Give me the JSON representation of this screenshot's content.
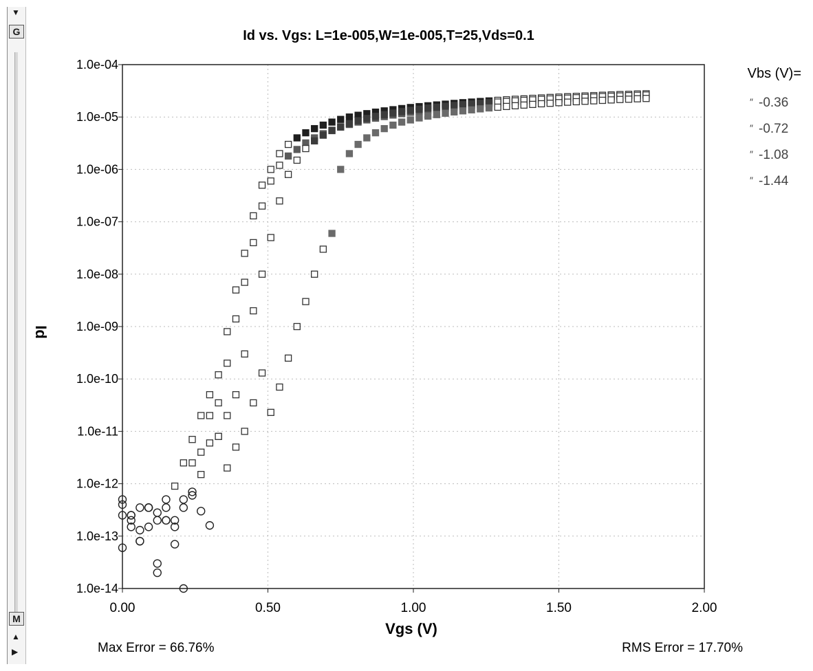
{
  "toolbar": {
    "top_button": "G",
    "bottom_button": "M",
    "top_arrow_icon": "triangle-down-icon",
    "up_arrow_icon": "triangle-up-icon",
    "right_arrow_icon": "triangle-right-icon"
  },
  "chart_data": {
    "type": "scatter",
    "title": "Id vs. Vgs: L=1e-005,W=1e-005,T=25,Vds=0.1",
    "xlabel": "Vgs (V)",
    "ylabel": "Id",
    "yscale": "log",
    "xlim": [
      0,
      2
    ],
    "ylim": [
      1e-14,
      0.0001
    ],
    "grid": true,
    "x_ticks": [
      0,
      0.5,
      1.0,
      1.5,
      2.0
    ],
    "x_tick_labels": [
      "0.00",
      "0.50",
      "1.00",
      "1.50",
      "2.00"
    ],
    "y_ticks": [
      0.0001,
      1e-05,
      1e-06,
      1e-07,
      1e-08,
      1e-09,
      1e-10,
      1e-11,
      1e-12,
      1e-13,
      1e-14
    ],
    "y_tick_labels": [
      "1.0e-04",
      "1.0e-05",
      "1.0e-06",
      "1.0e-07",
      "1.0e-08",
      "1.0e-09",
      "1.0e-10",
      "1.0e-11",
      "1.0e-12",
      "1.0e-13",
      "1.0e-14"
    ],
    "legend_title": "Vbs (V)=",
    "legend_position": "right",
    "series": [
      {
        "name": "-0.36",
        "color": "#5a5a5a",
        "marker_threshold_lin": 0.55,
        "x": [
          0.0,
          0.03,
          0.06,
          0.09,
          0.12,
          0.15,
          0.18,
          0.21,
          0.24,
          0.27,
          0.3,
          0.33,
          0.36,
          0.39,
          0.42,
          0.45,
          0.48,
          0.51,
          0.54,
          0.57,
          0.6,
          0.63,
          0.66,
          0.69,
          0.72,
          0.75,
          0.78,
          0.81,
          0.84,
          0.87,
          0.9,
          0.93,
          0.96,
          0.99,
          1.02,
          1.05,
          1.08,
          1.11,
          1.14,
          1.17,
          1.2,
          1.23,
          1.26,
          1.29,
          1.32,
          1.35,
          1.38,
          1.41,
          1.44,
          1.47,
          1.5,
          1.53,
          1.56,
          1.59,
          1.62,
          1.65,
          1.68,
          1.71,
          1.74,
          1.77,
          1.8
        ],
        "y": [
          5e-13,
          2.5e-13,
          1.3e-13,
          3.5e-13,
          2e-13,
          3.5e-13,
          1.5e-13,
          5e-13,
          6e-13,
          1.5e-12,
          6e-12,
          3.5e-11,
          2e-10,
          1.4e-09,
          7e-09,
          4e-08,
          2e-07,
          6e-07,
          1.2e-06,
          1.8e-06,
          2.4e-06,
          3.2e-06,
          4e-06,
          4.8e-06,
          5.6e-06,
          6.4e-06,
          7.2e-06,
          8e-06,
          8.8e-06,
          9.5e-06,
          1.02e-05,
          1.09e-05,
          1.16e-05,
          1.23e-05,
          1.3e-05,
          1.37e-05,
          1.43e-05,
          1.49e-05,
          1.55e-05,
          1.61e-05,
          1.67e-05,
          1.73e-05,
          1.79e-05,
          1.85e-05,
          1.9e-05,
          1.96e-05,
          2.01e-05,
          2.06e-05,
          2.11e-05,
          2.16e-05,
          2.21e-05,
          2.26e-05,
          2.3e-05,
          2.35e-05,
          2.4e-05,
          2.44e-05,
          2.48e-05,
          2.52e-05,
          2.56e-05,
          2.6e-05,
          2.64e-05
        ]
      },
      {
        "name": "-0.72",
        "color": "#1f1f1f",
        "marker_threshold_lin": 0.6,
        "x": [
          0.0,
          0.03,
          0.06,
          0.09,
          0.12,
          0.15,
          0.18,
          0.21,
          0.24,
          0.27,
          0.3,
          0.33,
          0.36,
          0.39,
          0.42,
          0.45,
          0.48,
          0.51,
          0.54,
          0.57,
          0.6,
          0.63,
          0.66,
          0.69,
          0.72,
          0.75,
          0.78,
          0.81,
          0.84,
          0.87,
          0.9,
          0.93,
          0.96,
          0.99,
          1.02,
          1.05,
          1.08,
          1.11,
          1.14,
          1.17,
          1.2,
          1.23,
          1.26,
          1.29,
          1.32,
          1.35,
          1.38,
          1.41,
          1.44,
          1.47,
          1.5,
          1.53,
          1.56,
          1.59,
          1.62,
          1.65,
          1.68,
          1.71,
          1.74,
          1.77,
          1.8
        ],
        "y": [
          4e-13,
          1.5e-13,
          8e-14,
          3.5e-13,
          3e-14,
          2e-13,
          7e-14,
          3.5e-13,
          2.5e-12,
          4e-12,
          2e-11,
          1.2e-10,
          8e-10,
          5e-09,
          2.5e-08,
          1.3e-07,
          5e-07,
          1e-06,
          2e-06,
          3e-06,
          4e-06,
          5e-06,
          6e-06,
          7e-06,
          8e-06,
          9e-06,
          1e-05,
          1.08e-05,
          1.16e-05,
          1.24e-05,
          1.31e-05,
          1.38e-05,
          1.45e-05,
          1.52e-05,
          1.58e-05,
          1.64e-05,
          1.7e-05,
          1.76e-05,
          1.82e-05,
          1.88e-05,
          1.93e-05,
          1.98e-05,
          2.03e-05,
          2.08e-05,
          2.13e-05,
          2.18e-05,
          2.22e-05,
          2.27e-05,
          2.31e-05,
          2.36e-05,
          2.4e-05,
          2.44e-05,
          2.48e-05,
          2.52e-05,
          2.56e-05,
          2.6e-05,
          2.64e-05,
          2.68e-05,
          2.71e-05,
          2.75e-05,
          2.78e-05
        ]
      },
      {
        "name": "-1.08",
        "color": "#3c3c3c",
        "marker_threshold_lin": 0.65,
        "x": [
          0.0,
          0.03,
          0.06,
          0.09,
          0.12,
          0.15,
          0.18,
          0.21,
          0.24,
          0.27,
          0.3,
          0.33,
          0.36,
          0.39,
          0.42,
          0.45,
          0.48,
          0.51,
          0.54,
          0.57,
          0.6,
          0.63,
          0.66,
          0.69,
          0.72,
          0.75,
          0.78,
          0.81,
          0.84,
          0.87,
          0.9,
          0.93,
          0.96,
          0.99,
          1.02,
          1.05,
          1.08,
          1.11,
          1.14,
          1.17,
          1.2,
          1.23,
          1.26,
          1.29,
          1.32,
          1.35,
          1.38,
          1.41,
          1.44,
          1.47,
          1.5,
          1.53,
          1.56,
          1.59,
          1.62,
          1.65,
          1.68,
          1.71,
          1.74,
          1.77,
          1.8
        ],
        "y": [
          2.5e-13,
          2.5e-13,
          8e-14,
          1.5e-13,
          2e-14,
          2e-13,
          2e-13,
          1e-14,
          7e-13,
          3e-13,
          1.6e-13,
          8e-12,
          2e-11,
          5e-11,
          3e-10,
          2e-09,
          1e-08,
          5e-08,
          2.5e-07,
          8e-07,
          1.5e-06,
          2.5e-06,
          3.5e-06,
          4.5e-06,
          5.5e-06,
          6.5e-06,
          7.5e-06,
          8.5e-06,
          9.4e-06,
          1.03e-05,
          1.11e-05,
          1.19e-05,
          1.27e-05,
          1.34e-05,
          1.41e-05,
          1.48e-05,
          1.54e-05,
          1.6e-05,
          1.66e-05,
          1.72e-05,
          1.78e-05,
          1.83e-05,
          1.88e-05,
          1.93e-05,
          1.98e-05,
          2.03e-05,
          2.08e-05,
          2.12e-05,
          2.17e-05,
          2.21e-05,
          2.25e-05,
          2.29e-05,
          2.33e-05,
          2.37e-05,
          2.41e-05,
          2.45e-05,
          2.49e-05,
          2.52e-05,
          2.56e-05,
          2.59e-05,
          2.63e-05
        ]
      },
      {
        "name": "-1.44",
        "color": "#6a6a6a",
        "marker_threshold_lin": 0.7,
        "x": [
          0.0,
          0.03,
          0.06,
          0.09,
          0.12,
          0.15,
          0.18,
          0.21,
          0.24,
          0.27,
          0.3,
          0.33,
          0.36,
          0.39,
          0.42,
          0.45,
          0.48,
          0.51,
          0.54,
          0.57,
          0.6,
          0.63,
          0.66,
          0.69,
          0.72,
          0.75,
          0.78,
          0.81,
          0.84,
          0.87,
          0.9,
          0.93,
          0.96,
          0.99,
          1.02,
          1.05,
          1.08,
          1.11,
          1.14,
          1.17,
          1.2,
          1.23,
          1.26,
          1.29,
          1.32,
          1.35,
          1.38,
          1.41,
          1.44,
          1.47,
          1.5,
          1.53,
          1.56,
          1.59,
          1.62,
          1.65,
          1.68,
          1.71,
          1.74,
          1.77,
          1.8
        ],
        "y": [
          6e-14,
          2e-13,
          3.5e-13,
          3.5e-13,
          2.8e-13,
          5e-13,
          9e-13,
          2.5e-12,
          7e-12,
          2e-11,
          5e-11,
          8e-12,
          2e-12,
          5e-12,
          1e-11,
          3.5e-11,
          1.3e-10,
          2.3e-11,
          7e-11,
          2.5e-10,
          1e-09,
          3e-09,
          1e-08,
          3e-08,
          6e-08,
          1e-06,
          2e-06,
          3e-06,
          4e-06,
          5e-06,
          6e-06,
          7e-06,
          8e-06,
          8.8e-06,
          9.6e-06,
          1.04e-05,
          1.11e-05,
          1.18e-05,
          1.25e-05,
          1.31e-05,
          1.37e-05,
          1.43e-05,
          1.49e-05,
          1.54e-05,
          1.59e-05,
          1.64e-05,
          1.69e-05,
          1.74e-05,
          1.79e-05,
          1.83e-05,
          1.88e-05,
          1.92e-05,
          1.96e-05,
          2e-05,
          2.04e-05,
          2.08e-05,
          2.12e-05,
          2.16e-05,
          2.19e-05,
          2.23e-05,
          2.26e-05
        ]
      }
    ],
    "footer": {
      "max_error": "Max Error = 66.76%",
      "rms_error": "RMS Error = 17.70%"
    }
  }
}
